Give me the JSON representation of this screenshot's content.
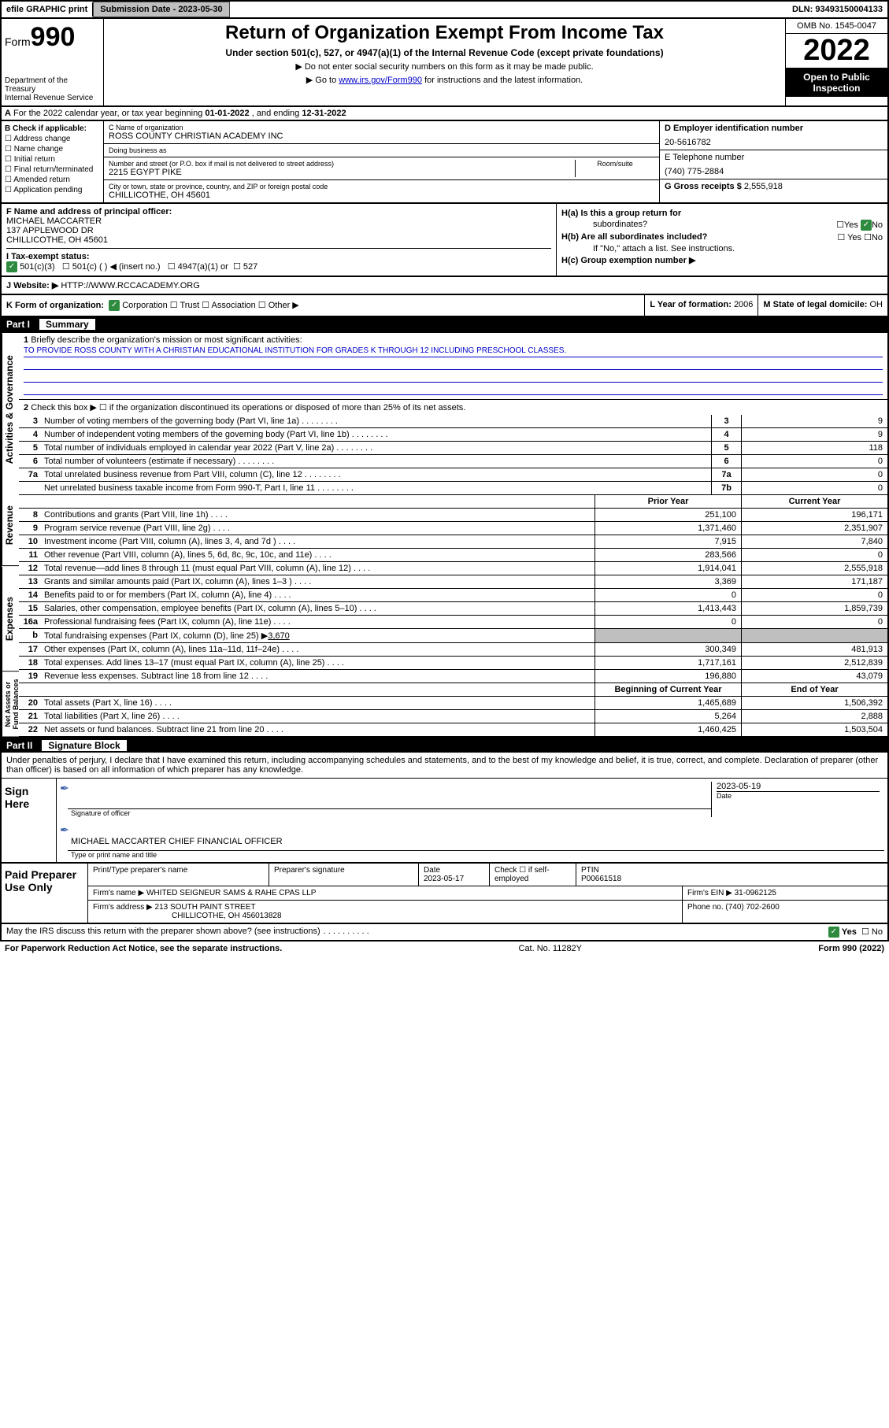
{
  "topbar": {
    "efile": "efile GRAPHIC print",
    "subdate_lbl": "Submission Date - 2023-05-30",
    "dln": "DLN: 93493150004133"
  },
  "header": {
    "form": "Form",
    "num": "990",
    "title": "Return of Organization Exempt From Income Tax",
    "sub": "Under section 501(c), 527, or 4947(a)(1) of the Internal Revenue Code (except private foundations)",
    "note1": "▶ Do not enter social security numbers on this form as it may be made public.",
    "note2_pre": "▶ Go to ",
    "note2_link": "www.irs.gov/Form990",
    "note2_post": " for instructions and the latest information.",
    "dept": "Department of the Treasury\nInternal Revenue Service",
    "omb": "OMB No. 1545-0047",
    "year": "2022",
    "open": "Open to Public Inspection"
  },
  "rowA": {
    "lbl": "A",
    "txt": " For the 2022 calendar year, or tax year beginning ",
    "begin": "01-01-2022",
    "mid": "    , and ending ",
    "end": "12-31-2022"
  },
  "colB": {
    "hdr": "B Check if applicable:",
    "items": [
      "Address change",
      "Name change",
      "Initial return",
      "Final return/terminated",
      "Amended return",
      "Application pending"
    ]
  },
  "colC": {
    "name_lbl": "C Name of organization",
    "name": "ROSS COUNTY CHRISTIAN ACADEMY INC",
    "dba_lbl": "Doing business as",
    "dba": "",
    "addr_lbl": "Number and street (or P.O. box if mail is not delivered to street address)",
    "addr": "2215 EGYPT PIKE",
    "room_lbl": "Room/suite",
    "city_lbl": "City or town, state or province, country, and ZIP or foreign postal code",
    "city": "CHILLICOTHE, OH  45601"
  },
  "colD": {
    "ein_lbl": "D Employer identification number",
    "ein": "20-5616782",
    "tel_lbl": "E Telephone number",
    "tel": "(740) 775-2884",
    "gross_lbl": "G Gross receipts $ ",
    "gross": "2,555,918"
  },
  "rowF": {
    "lbl": "F Name and address of principal officer:",
    "name": "MICHAEL MACCARTER",
    "addr1": "137 APPLEWOOD DR",
    "addr2": "CHILLICOTHE, OH  45601"
  },
  "rowI": {
    "lbl": "I   Tax-exempt status:",
    "opt1": "501(c)(3)",
    "opt2": "501(c) (  ) ◀ (insert no.)",
    "opt3": "4947(a)(1) or",
    "opt4": "527"
  },
  "rowH": {
    "a_lbl": "H(a)  Is this a group return for",
    "a_sub": "subordinates?",
    "a_yesno": "☐Yes  ",
    "a_no": "No",
    "b_lbl": "H(b)  Are all subordinates included?",
    "b_yesno": "☐ Yes  ☐No",
    "note": "If \"No,\" attach a list. See instructions.",
    "c_lbl": "H(c)  Group exemption number ▶"
  },
  "rowJ": {
    "lbl": "J   Website: ▶  ",
    "val": "HTTP://WWW.RCCACADEMY.ORG"
  },
  "rowK": {
    "lbl": "K Form of organization:",
    "opts": "Corporation   ☐ Trust   ☐ Association   ☐ Other ▶",
    "year_lbl": "L Year of formation: ",
    "year": "2006",
    "state_lbl": "M State of legal domicile: ",
    "state": "OH"
  },
  "part1": {
    "hdr_num": "Part I",
    "hdr_txt": "Summary",
    "q1_lbl": "1",
    "q1_txt": "Briefly describe the organization's mission or most significant activities:",
    "q1_val": "TO PROVIDE ROSS COUNTY WITH A CHRISTIAN EDUCATIONAL INSTITUTION FOR GRADES K THROUGH 12 INCLUDING PRESCHOOL CLASSES.",
    "q2_lbl": "2",
    "q2_txt": "Check this box ▶ ☐  if the organization discontinued its operations or disposed of more than 25% of its net assets.",
    "side1": "Activities & Governance",
    "side2": "Revenue",
    "side3": "Expenses",
    "side4": "Net Assets or Fund Balances",
    "lines_single": [
      {
        "n": "3",
        "t": "Number of voting members of the governing body (Part VI, line 1a)",
        "k": "3",
        "v": "9"
      },
      {
        "n": "4",
        "t": "Number of independent voting members of the governing body (Part VI, line 1b)",
        "k": "4",
        "v": "9"
      },
      {
        "n": "5",
        "t": "Total number of individuals employed in calendar year 2022 (Part V, line 2a)",
        "k": "5",
        "v": "118"
      },
      {
        "n": "6",
        "t": "Total number of volunteers (estimate if necessary)",
        "k": "6",
        "v": "0"
      },
      {
        "n": "7a",
        "t": "Total unrelated business revenue from Part VIII, column (C), line 12",
        "k": "7a",
        "v": "0"
      },
      {
        "n": "",
        "t": "Net unrelated business taxable income from Form 990-T, Part I, line 11",
        "k": "7b",
        "v": "0"
      }
    ],
    "col_hdr1": "Prior Year",
    "col_hdr2": "Current Year",
    "rev": [
      {
        "n": "8",
        "t": "Contributions and grants (Part VIII, line 1h)",
        "p": "251,100",
        "c": "196,171"
      },
      {
        "n": "9",
        "t": "Program service revenue (Part VIII, line 2g)",
        "p": "1,371,460",
        "c": "2,351,907"
      },
      {
        "n": "10",
        "t": "Investment income (Part VIII, column (A), lines 3, 4, and 7d )",
        "p": "7,915",
        "c": "7,840"
      },
      {
        "n": "11",
        "t": "Other revenue (Part VIII, column (A), lines 5, 6d, 8c, 9c, 10c, and 11e)",
        "p": "283,566",
        "c": "0"
      },
      {
        "n": "12",
        "t": "Total revenue—add lines 8 through 11 (must equal Part VIII, column (A), line 12)",
        "p": "1,914,041",
        "c": "2,555,918"
      }
    ],
    "exp": [
      {
        "n": "13",
        "t": "Grants and similar amounts paid (Part IX, column (A), lines 1–3 )",
        "p": "3,369",
        "c": "171,187"
      },
      {
        "n": "14",
        "t": "Benefits paid to or for members (Part IX, column (A), line 4)",
        "p": "0",
        "c": "0"
      },
      {
        "n": "15",
        "t": "Salaries, other compensation, employee benefits (Part IX, column (A), lines 5–10)",
        "p": "1,413,443",
        "c": "1,859,739"
      },
      {
        "n": "16a",
        "t": "Professional fundraising fees (Part IX, column (A), line 11e)",
        "p": "0",
        "c": "0"
      }
    ],
    "line16b": {
      "n": "b",
      "t": "Total fundraising expenses (Part IX, column (D), line 25) ▶",
      "v": "3,670"
    },
    "exp2": [
      {
        "n": "17",
        "t": "Other expenses (Part IX, column (A), lines 11a–11d, 11f–24e)",
        "p": "300,349",
        "c": "481,913"
      },
      {
        "n": "18",
        "t": "Total expenses. Add lines 13–17 (must equal Part IX, column (A), line 25)",
        "p": "1,717,161",
        "c": "2,512,839"
      },
      {
        "n": "19",
        "t": "Revenue less expenses. Subtract line 18 from line 12",
        "p": "196,880",
        "c": "43,079"
      }
    ],
    "bal_hdr1": "Beginning of Current Year",
    "bal_hdr2": "End of Year",
    "bal": [
      {
        "n": "20",
        "t": "Total assets (Part X, line 16)",
        "p": "1,465,689",
        "c": "1,506,392"
      },
      {
        "n": "21",
        "t": "Total liabilities (Part X, line 26)",
        "p": "5,264",
        "c": "2,888"
      },
      {
        "n": "22",
        "t": "Net assets or fund balances. Subtract line 21 from line 20",
        "p": "1,460,425",
        "c": "1,503,504"
      }
    ]
  },
  "part2": {
    "hdr_num": "Part II",
    "hdr_txt": "Signature Block",
    "decl": "Under penalties of perjury, I declare that I have examined this return, including accompanying schedules and statements, and to the best of my knowledge and belief, it is true, correct, and complete. Declaration of preparer (other than officer) is based on all information of which preparer has any knowledge.",
    "sign_here": "Sign Here",
    "sig_lbl": "Signature of officer",
    "date_val": "2023-05-19",
    "date_lbl": "Date",
    "name": "MICHAEL MACCARTER  CHIEF FINANCIAL OFFICER",
    "name_lbl": "Type or print name and title"
  },
  "prep": {
    "left": "Paid Preparer Use Only",
    "r1c1_lbl": "Print/Type preparer's name",
    "r1c2_lbl": "Preparer's signature",
    "r1c3_lbl": "Date",
    "r1c3_val": "2023-05-17",
    "r1c4_lbl": "Check ☐ if self-employed",
    "r1c5_lbl": "PTIN",
    "r1c5_val": "P00661518",
    "r2c1_lbl": "Firm's name      ▶ ",
    "r2c1_val": "WHITED SEIGNEUR SAMS & RAHE CPAS LLP",
    "r2c2_lbl": "Firm's EIN ▶ ",
    "r2c2_val": "31-0962125",
    "r3c1_lbl": "Firm's address ▶ ",
    "r3c1_val": "213 SOUTH PAINT STREET",
    "r3c1_val2": "CHILLICOTHE, OH  456013828",
    "r3c2_lbl": "Phone no. ",
    "r3c2_val": "(740) 702-2600"
  },
  "footer": {
    "q": "May the IRS discuss this return with the preparer shown above? (see instructions)",
    "yes": "Yes",
    "no": "☐ No",
    "pra": "For Paperwork Reduction Act Notice, see the separate instructions.",
    "cat": "Cat. No. 11282Y",
    "form": "Form 990 (2022)"
  }
}
